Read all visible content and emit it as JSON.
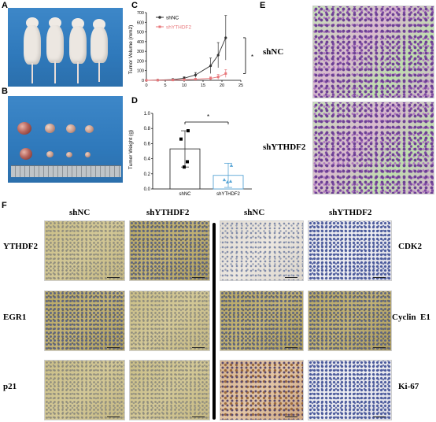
{
  "panels": {
    "A": "A",
    "B": "B",
    "C": "C",
    "D": "D",
    "E": "E",
    "F": "F"
  },
  "panel_C": {
    "ylabel": "Tumor Volume (mm2)",
    "yticks": [
      "0",
      "100",
      "200",
      "300",
      "400",
      "500",
      "600",
      "700"
    ],
    "xticks": [
      "0",
      "5",
      "10",
      "15",
      "20",
      "25"
    ],
    "legend": [
      "shNC",
      "shYTHDF2"
    ],
    "significance": "*"
  },
  "panel_D": {
    "ylabel": "Tumor Weight (g)",
    "yticks": [
      "0.0",
      "0.2",
      "0.4",
      "0.6",
      "0.8",
      "1.0"
    ],
    "categories": [
      "shNC",
      "shYTHDF2"
    ],
    "significance": "*"
  },
  "panel_E": {
    "labels": [
      "shNC",
      "shYTHDF2"
    ]
  },
  "panel_F": {
    "col_headers": [
      "shNC",
      "shYTHDF2",
      "shNC",
      "shYTHDF2"
    ],
    "left_rows": [
      "YTHDF2",
      "EGR1",
      "p21"
    ],
    "right_rows": [
      "CDK2",
      "Cyclin  E1",
      "Ki-67"
    ]
  },
  "colors": {
    "shNC": "#333333",
    "shYTHDF2": "#e8777b",
    "bar_shYTHDF2": "#5aa6d6"
  },
  "chart_data": [
    {
      "type": "line",
      "ylabel": "Tumor Volume (mm2)",
      "xlim": [
        0,
        25
      ],
      "ylim": [
        0,
        700
      ],
      "series": [
        {
          "name": "shNC",
          "x": [
            0,
            3,
            7,
            10,
            13,
            17,
            19,
            21
          ],
          "y": [
            0,
            2,
            8,
            22,
            55,
            150,
            260,
            440
          ],
          "err": [
            0,
            3,
            8,
            14,
            25,
            80,
            130,
            230
          ]
        },
        {
          "name": "shYTHDF2",
          "x": [
            0,
            3,
            7,
            10,
            13,
            17,
            19,
            21
          ],
          "y": [
            0,
            1,
            3,
            6,
            12,
            20,
            35,
            70
          ],
          "err": [
            0,
            1,
            3,
            5,
            8,
            15,
            25,
            40
          ]
        }
      ]
    },
    {
      "type": "bar",
      "ylabel": "Tumor Weight (g)",
      "categories": [
        "shNC",
        "shYTHDF2"
      ],
      "values": [
        0.53,
        0.18
      ],
      "errors": [
        0.24,
        0.16
      ],
      "ylim": [
        0,
        1.0
      ],
      "points": [
        [
          0.77,
          0.66,
          0.36,
          0.29
        ],
        [
          0.31,
          0.12,
          0.1,
          0.09
        ]
      ]
    }
  ]
}
